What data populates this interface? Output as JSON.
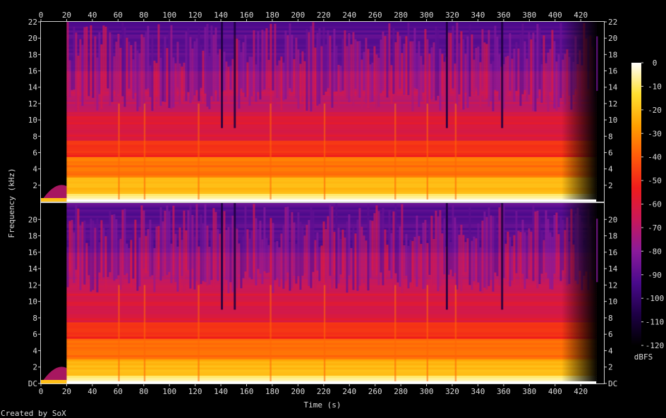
{
  "chart_data": {
    "type": "heatmap",
    "title": "",
    "xlabel": "Time (s)",
    "ylabel": "Frequency (kHz)",
    "colorbar_label": "dBFS",
    "footer": "Created by SoX",
    "channels": 2,
    "xlim": [
      0,
      438
    ],
    "ylim_khz": [
      0,
      22
    ],
    "x_ticks": [
      "0",
      "20",
      "40",
      "60",
      "80",
      "100",
      "120",
      "140",
      "160",
      "180",
      "200",
      "220",
      "240",
      "260",
      "280",
      "300",
      "320",
      "340",
      "360",
      "380",
      "400",
      "420"
    ],
    "y_ticks_top": [
      "22",
      "20",
      "18",
      "16",
      "14",
      "12",
      "10",
      "8",
      "6",
      "4",
      "2"
    ],
    "y_ticks_bottom": [
      "20",
      "18",
      "16",
      "14",
      "12",
      "10",
      "8",
      "6",
      "4",
      "2",
      "DC"
    ],
    "colorbar_ticks": [
      "0",
      "-10",
      "-20",
      "-30",
      "-40",
      "-50",
      "-60",
      "-70",
      "-80",
      "-90",
      "-100",
      "-110",
      "-120"
    ],
    "colorbar_range_dbfs": [
      -120,
      0
    ],
    "colormap": [
      "#000000",
      "#1e0046",
      "#4a0a8c",
      "#8a1a9a",
      "#c8185a",
      "#ee1c1c",
      "#ff5a0a",
      "#ffa000",
      "#ffe030",
      "#ffffff"
    ],
    "audio_start_s": 20,
    "audio_end_s": 432,
    "lowpass_cutoff_khz": 16.5,
    "frequency_bands_dbfs": [
      {
        "from_khz": 0,
        "to_khz": 1,
        "level": -8
      },
      {
        "from_khz": 1,
        "to_khz": 3,
        "level": -22
      },
      {
        "from_khz": 3,
        "to_khz": 5.5,
        "level": -35
      },
      {
        "from_khz": 5.5,
        "to_khz": 7.5,
        "level": -50
      },
      {
        "from_khz": 7.5,
        "to_khz": 11,
        "level": -60
      },
      {
        "from_khz": 11,
        "to_khz": 16,
        "level": -68
      },
      {
        "from_khz": 16,
        "to_khz": 22,
        "level": -90
      }
    ],
    "dark_gaps_s": [
      140,
      150,
      315,
      358
    ],
    "bright_bursts_s": [
      60,
      80,
      122,
      178,
      220,
      275,
      300,
      322
    ]
  }
}
